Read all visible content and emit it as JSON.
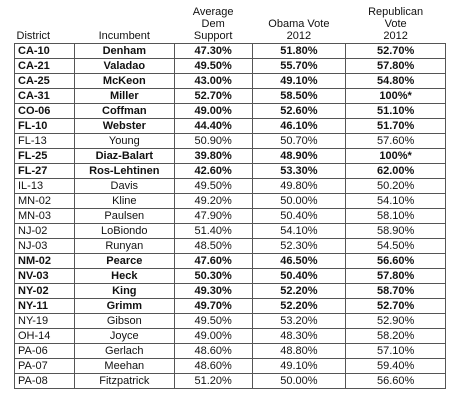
{
  "table": {
    "header": [
      [
        "District"
      ],
      [
        "Incumbent"
      ],
      [
        "Average",
        "Dem",
        "Support"
      ],
      [
        "Obama Vote",
        "2012"
      ],
      [
        "Republican",
        "Vote",
        "2012"
      ]
    ],
    "rows": [
      {
        "cells": [
          "CA-10",
          "Denham",
          "47.30%",
          "51.80%",
          "52.70%"
        ],
        "bold": true
      },
      {
        "cells": [
          "CA-21",
          "Valadao",
          "49.50%",
          "55.70%",
          "57.80%"
        ],
        "bold": true
      },
      {
        "cells": [
          "CA-25",
          "McKeon",
          "43.00%",
          "49.10%",
          "54.80%"
        ],
        "bold": true
      },
      {
        "cells": [
          "CA-31",
          "Miller",
          "52.70%",
          "58.50%",
          "100%*"
        ],
        "bold": true
      },
      {
        "cells": [
          "CO-06",
          "Coffman",
          "49.00%",
          "52.60%",
          "51.10%"
        ],
        "bold": true
      },
      {
        "cells": [
          "FL-10",
          "Webster",
          "44.40%",
          "46.10%",
          "51.70%"
        ],
        "bold": true
      },
      {
        "cells": [
          "FL-13",
          "Young",
          "50.90%",
          "50.70%",
          "57.60%"
        ],
        "bold": false
      },
      {
        "cells": [
          "FL-25",
          "Diaz-Balart",
          "39.80%",
          "48.90%",
          "100%*"
        ],
        "bold": true
      },
      {
        "cells": [
          "FL-27",
          "Ros-Lehtinen",
          "42.60%",
          "53.30%",
          "62.00%"
        ],
        "bold": true
      },
      {
        "cells": [
          "IL-13",
          "Davis",
          "49.50%",
          "49.80%",
          "50.20%"
        ],
        "bold": false
      },
      {
        "cells": [
          "MN-02",
          "Kline",
          "49.20%",
          "50.00%",
          "54.10%"
        ],
        "bold": false
      },
      {
        "cells": [
          "MN-03",
          "Paulsen",
          "47.90%",
          "50.40%",
          "58.10%"
        ],
        "bold": false
      },
      {
        "cells": [
          "NJ-02",
          "LoBiondo",
          "51.40%",
          "54.10%",
          "58.90%"
        ],
        "bold": false
      },
      {
        "cells": [
          "NJ-03",
          "Runyan",
          "48.50%",
          "52.30%",
          "54.50%"
        ],
        "bold": false
      },
      {
        "cells": [
          "NM-02",
          "Pearce",
          "47.60%",
          "46.50%",
          "56.60%"
        ],
        "bold": true
      },
      {
        "cells": [
          "NV-03",
          "Heck",
          "50.30%",
          "50.40%",
          "57.80%"
        ],
        "bold": true
      },
      {
        "cells": [
          "NY-02",
          "King",
          "49.30%",
          "52.20%",
          "58.70%"
        ],
        "bold": true
      },
      {
        "cells": [
          "NY-11",
          "Grimm",
          "49.70%",
          "52.20%",
          "52.70%"
        ],
        "bold": true
      },
      {
        "cells": [
          "NY-19",
          "Gibson",
          "49.50%",
          "53.20%",
          "52.90%"
        ],
        "bold": false
      },
      {
        "cells": [
          "OH-14",
          "Joyce",
          "49.00%",
          "48.30%",
          "58.20%"
        ],
        "bold": false
      },
      {
        "cells": [
          "PA-06",
          "Gerlach",
          "48.60%",
          "48.80%",
          "57.10%"
        ],
        "bold": false
      },
      {
        "cells": [
          "PA-07",
          "Meehan",
          "48.60%",
          "49.10%",
          "59.40%"
        ],
        "bold": false
      },
      {
        "cells": [
          "PA-08",
          "Fitzpatrick",
          "51.20%",
          "50.00%",
          "56.60%"
        ],
        "bold": false
      }
    ]
  }
}
